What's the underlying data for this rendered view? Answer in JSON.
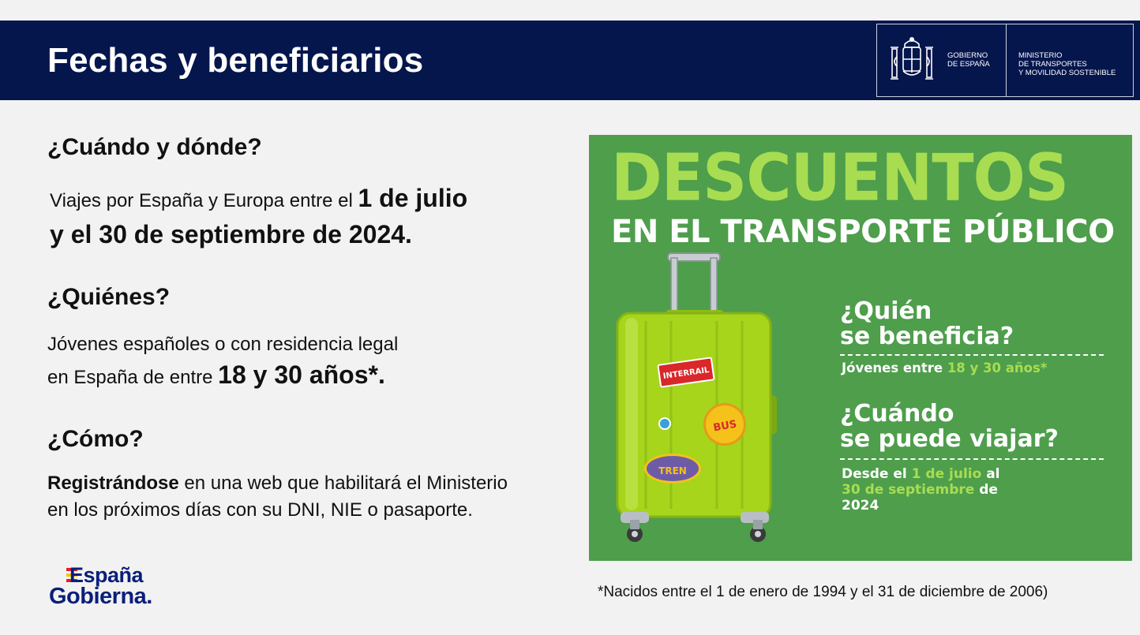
{
  "header": {
    "title": "Fechas y beneficiarios",
    "gov_label": "GOBIERNO\nDE ESPAÑA",
    "ministry_label": "MINISTERIO\nDE TRANSPORTES\nY MOVILIDAD SOSTENIBLE"
  },
  "sections": {
    "when": {
      "heading": "¿Cuándo y dónde?",
      "text_prefix": "Viajes por España y Europa entre el ",
      "text_bold_1": "1 de julio",
      "text_bold_2": "y el 30 de septiembre de 2024."
    },
    "who": {
      "heading": "¿Quiénes?",
      "line1": "Jóvenes españoles o con residencia legal",
      "line2_prefix": "en España de entre ",
      "line2_bold": "18 y 30 años*."
    },
    "how": {
      "heading": "¿Cómo?",
      "bold": "Registrándose",
      "rest_line1": " en una web que habilitará el Ministerio",
      "line2": "en los próximos días con su DNI, NIE o pasaporte."
    }
  },
  "logo": {
    "line1": "España",
    "line2": "Gobierna."
  },
  "footnote": "*Nacidos entre el 1 de enero de 1994 y el 31 de diciembre de 2006)",
  "poster": {
    "title": "DESCUENTOS",
    "subtitle": "EN EL TRANSPORTE PÚBLICO",
    "q1": "¿Quién\nse beneficia?",
    "a1_prefix": "Jóvenes entre ",
    "a1_highlight": "18 y 30 años*",
    "q2": "¿Cuándo\nse puede viajar?",
    "a2_prefix": "Desde el ",
    "a2_hl1": "1 de julio",
    "a2_mid": " al",
    "a2_hl2": "30 de septiembre",
    "a2_suffix": " de",
    "a2_year": "2024",
    "stickers": {
      "interrail": "INTERRAIL",
      "bus": "BUS",
      "tren": "TREN"
    },
    "colors": {
      "background": "#4e9e4c",
      "accent": "#a8dd52",
      "suitcase": "#a6d51b"
    }
  },
  "colors": {
    "header_bg": "#05164d",
    "page_bg": "#f2f2f2"
  }
}
